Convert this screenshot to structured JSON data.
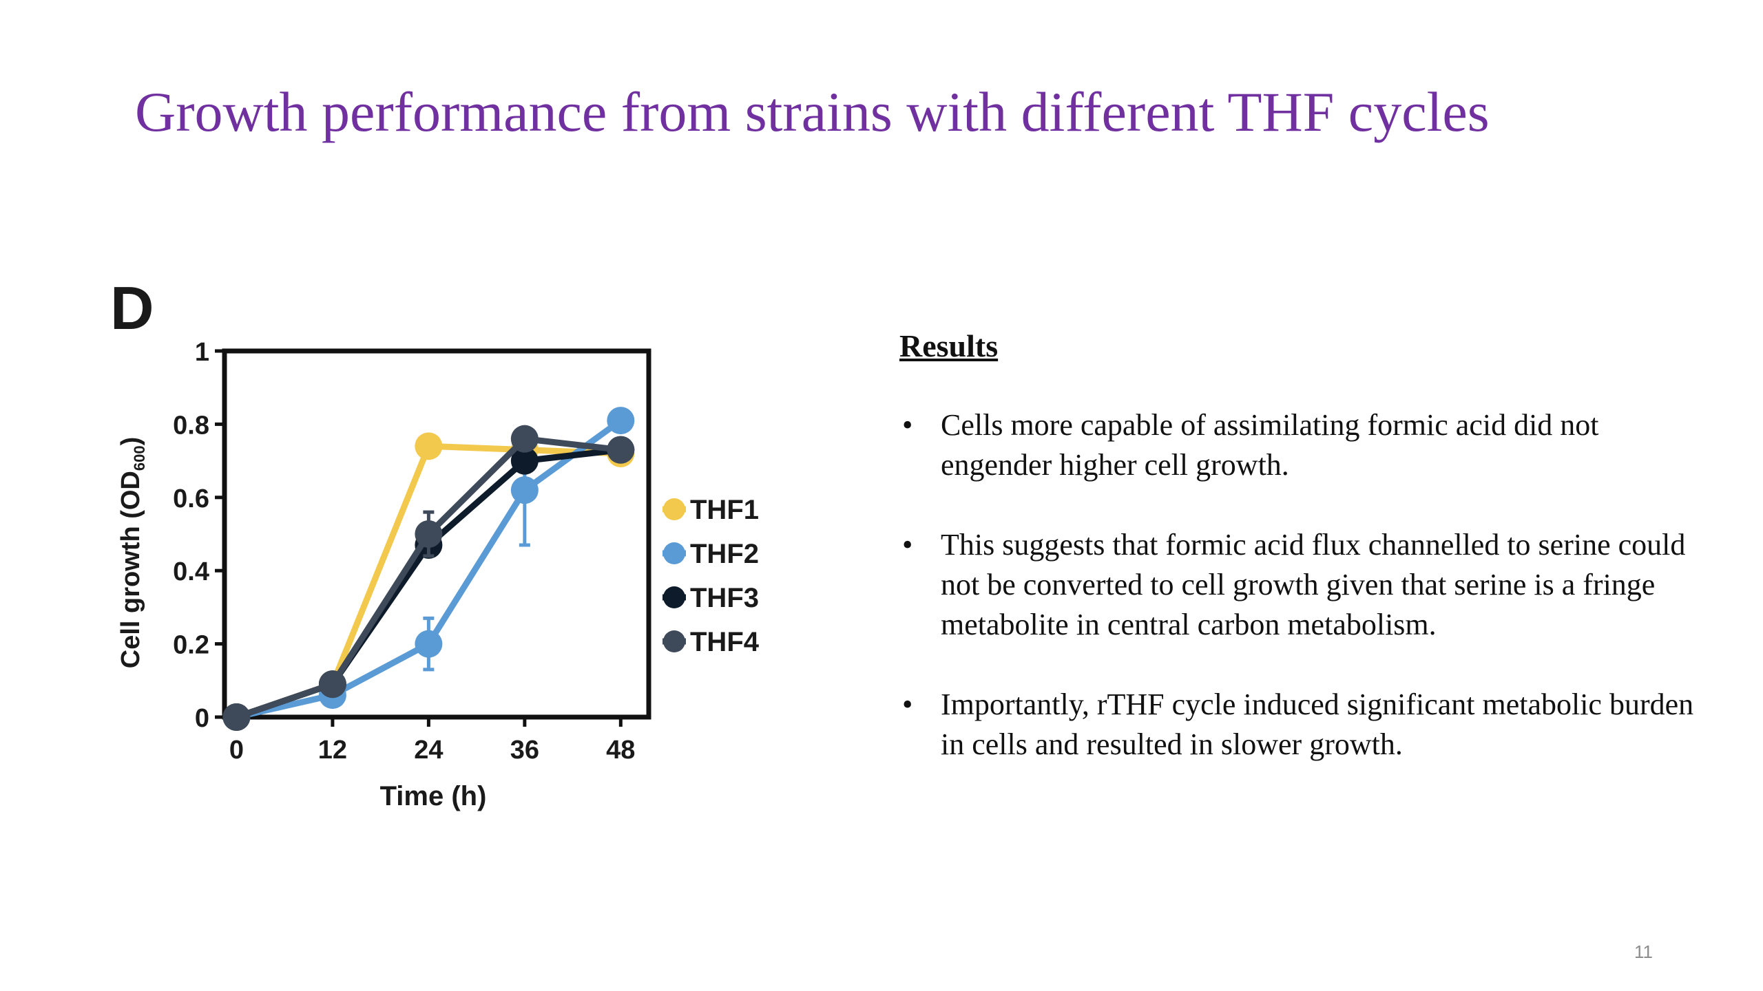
{
  "slide": {
    "title": "Growth performance from strains with different THF cycles",
    "page_number": "11"
  },
  "results": {
    "heading": "Results",
    "bullets": [
      "Cells more capable of assimilating formic acid did not engender higher cell growth.",
      "This suggests that formic acid flux channelled to serine could not be converted to cell growth given that serine is a fringe metabolite in central carbon metabolism.",
      "Importantly, rTHF cycle induced significant metabolic burden in cells and resulted in slower growth."
    ]
  },
  "chart_data": {
    "type": "line",
    "panel_label": "D",
    "title": "",
    "xlabel": "Time (h)",
    "ylabel_main": "Cell growth (OD",
    "ylabel_sub": "600",
    "ylabel_close": ")",
    "x": [
      0,
      12,
      24,
      36,
      48
    ],
    "x_tick_labels": [
      "0",
      "12",
      "24",
      "36",
      "48"
    ],
    "y_ticks": [
      0,
      0.2,
      0.4,
      0.6,
      0.8,
      1
    ],
    "y_tick_labels": [
      "0",
      "0.2",
      "0.4",
      "0.6",
      "0.8",
      "1"
    ],
    "xlim": [
      -1.5,
      51.5
    ],
    "ylim": [
      0,
      1
    ],
    "legend_position": "right",
    "grid": false,
    "series": [
      {
        "name": "THF1",
        "color": "#f2c94c",
        "values": [
          0.0,
          0.09,
          0.74,
          0.73,
          0.72
        ],
        "errors": [
          0,
          0,
          0,
          0,
          0
        ]
      },
      {
        "name": "THF2",
        "color": "#5b9bd5",
        "values": [
          0.0,
          0.06,
          0.2,
          0.62,
          0.81
        ],
        "errors": [
          0,
          0,
          0.07,
          0.15,
          0
        ]
      },
      {
        "name": "THF3",
        "color": "#0d1b2a",
        "values": [
          0.0,
          0.09,
          0.47,
          0.7,
          0.73
        ],
        "errors": [
          0,
          0,
          0,
          0,
          0
        ]
      },
      {
        "name": "THF4",
        "color": "#3e4a59",
        "values": [
          0.0,
          0.09,
          0.5,
          0.76,
          0.73
        ],
        "errors": [
          0,
          0,
          0.06,
          0,
          0
        ]
      }
    ]
  }
}
